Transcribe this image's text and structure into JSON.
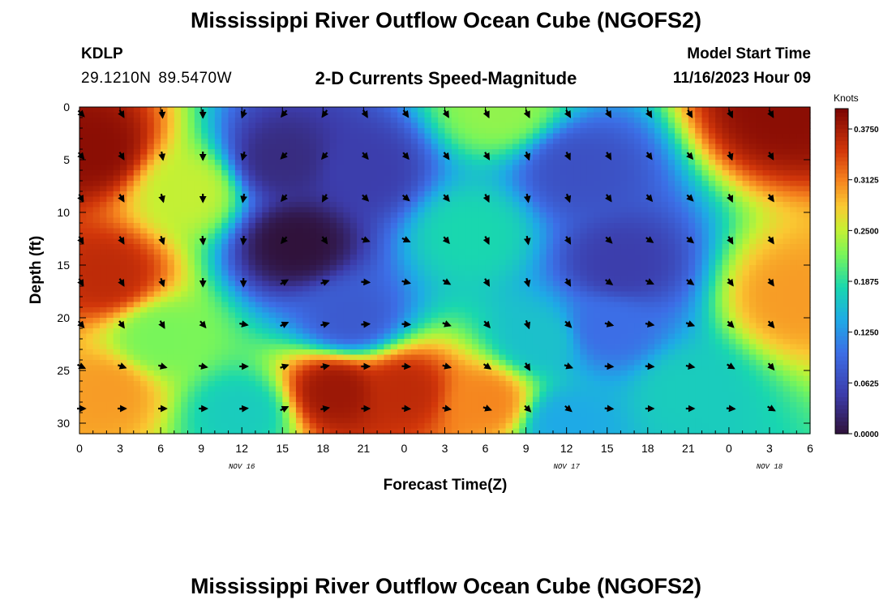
{
  "header": {
    "title": "Mississippi River Outflow Ocean Cube (NGOFS2)",
    "station": "KDLP",
    "lat": "29.1210N",
    "lon": "89.5470W",
    "subtitle": "2-D Currents Speed-Magnitude",
    "model_start_label": "Model Start Time",
    "model_start_value": "11/16/2023 Hour 09"
  },
  "footer": {
    "title": "Mississippi River Outflow Ocean Cube (NGOFS2)"
  },
  "chart_data": {
    "type": "heatmap",
    "xlabel": "Forecast Time(Z)",
    "ylabel": "Depth (ft)",
    "x_range_hours": [
      0,
      54
    ],
    "y_range_ft": [
      0,
      31
    ],
    "y_inverted": true,
    "x_ticks": [
      "0",
      "3",
      "6",
      "9",
      "12",
      "15",
      "18",
      "21",
      "0",
      "3",
      "6",
      "9",
      "12",
      "15",
      "18",
      "21",
      "0",
      "3",
      "6"
    ],
    "y_ticks": [
      "0",
      "5",
      "10",
      "15",
      "20",
      "25",
      "30"
    ],
    "day_labels": [
      {
        "hour": 12,
        "label": "NOV 16"
      },
      {
        "hour": 36,
        "label": "NOV 17"
      },
      {
        "hour": 51,
        "label": "NOV 18"
      }
    ],
    "colorbar": {
      "units": "Knots",
      "min": 0,
      "max": 0.4,
      "ticks": [
        "0.0000",
        "0.0625",
        "0.1250",
        "0.1875",
        "0.2500",
        "0.3125",
        "0.3750"
      ]
    },
    "field_features": [
      {
        "t": 1,
        "d": 4,
        "speed": 0.39
      },
      {
        "t": 2,
        "d": 16,
        "speed": 0.36
      },
      {
        "t": 2,
        "d": 27,
        "speed": 0.3
      },
      {
        "t": 15,
        "d": 5,
        "speed": 0.03
      },
      {
        "t": 16,
        "d": 13,
        "speed": 0.0
      },
      {
        "t": 21,
        "d": 6,
        "speed": 0.05
      },
      {
        "t": 20,
        "d": 20,
        "speed": 0.08
      },
      {
        "t": 19,
        "d": 27,
        "speed": 0.38
      },
      {
        "t": 24,
        "d": 27,
        "speed": 0.36
      },
      {
        "t": 30,
        "d": 28,
        "speed": 0.31
      },
      {
        "t": 31,
        "d": 0,
        "speed": 0.23
      },
      {
        "t": 29,
        "d": 12,
        "speed": 0.18
      },
      {
        "t": 37,
        "d": 6,
        "speed": 0.07
      },
      {
        "t": 40,
        "d": 15,
        "speed": 0.05
      },
      {
        "t": 39,
        "d": 21,
        "speed": 0.1
      },
      {
        "t": 52,
        "d": 0,
        "speed": 0.39
      },
      {
        "t": 53,
        "d": 18,
        "speed": 0.3
      },
      {
        "t": 12,
        "d": 29,
        "speed": 0.17
      },
      {
        "t": 6,
        "d": 22,
        "speed": 0.22
      },
      {
        "t": 45,
        "d": 27,
        "speed": 0.17
      },
      {
        "t": 8,
        "d": 8,
        "speed": 0.25
      },
      {
        "t": 34,
        "d": 22,
        "speed": 0.16
      },
      {
        "t": 36,
        "d": 30,
        "speed": 0.14
      }
    ],
    "vectors": {
      "times_h": [
        0,
        3,
        6,
        9,
        12,
        15,
        18,
        21,
        24,
        27,
        30,
        33,
        36,
        39,
        42,
        45,
        48,
        51
      ],
      "depths_ft": [
        0,
        4,
        8,
        12,
        16,
        20,
        24,
        28
      ],
      "directions_deg": [
        [
          135,
          150,
          175,
          180,
          200,
          220,
          215,
          150,
          145,
          150,
          155,
          155,
          150,
          150,
          150,
          150,
          155,
          150
        ],
        [
          140,
          150,
          170,
          180,
          195,
          225,
          220,
          140,
          140,
          145,
          150,
          160,
          155,
          150,
          145,
          140,
          160,
          150
        ],
        [
          150,
          150,
          165,
          180,
          190,
          220,
          210,
          135,
          130,
          140,
          155,
          170,
          160,
          145,
          140,
          135,
          155,
          145
        ],
        [
          150,
          150,
          160,
          175,
          185,
          220,
          145,
          110,
          115,
          140,
          155,
          170,
          150,
          135,
          125,
          130,
          150,
          145
        ],
        [
          150,
          150,
          160,
          180,
          180,
          60,
          70,
          95,
          105,
          120,
          150,
          165,
          150,
          125,
          115,
          125,
          145,
          145
        ],
        [
          140,
          145,
          150,
          140,
          100,
          65,
          75,
          85,
          95,
          110,
          140,
          160,
          135,
          105,
          100,
          110,
          135,
          140
        ],
        [
          115,
          110,
          105,
          100,
          90,
          70,
          80,
          90,
          95,
          105,
          125,
          150,
          110,
          95,
          95,
          100,
          120,
          140
        ],
        [
          90,
          90,
          90,
          90,
          85,
          65,
          80,
          90,
          95,
          100,
          110,
          135,
          130,
          95,
          90,
          90,
          95,
          120
        ]
      ]
    }
  }
}
